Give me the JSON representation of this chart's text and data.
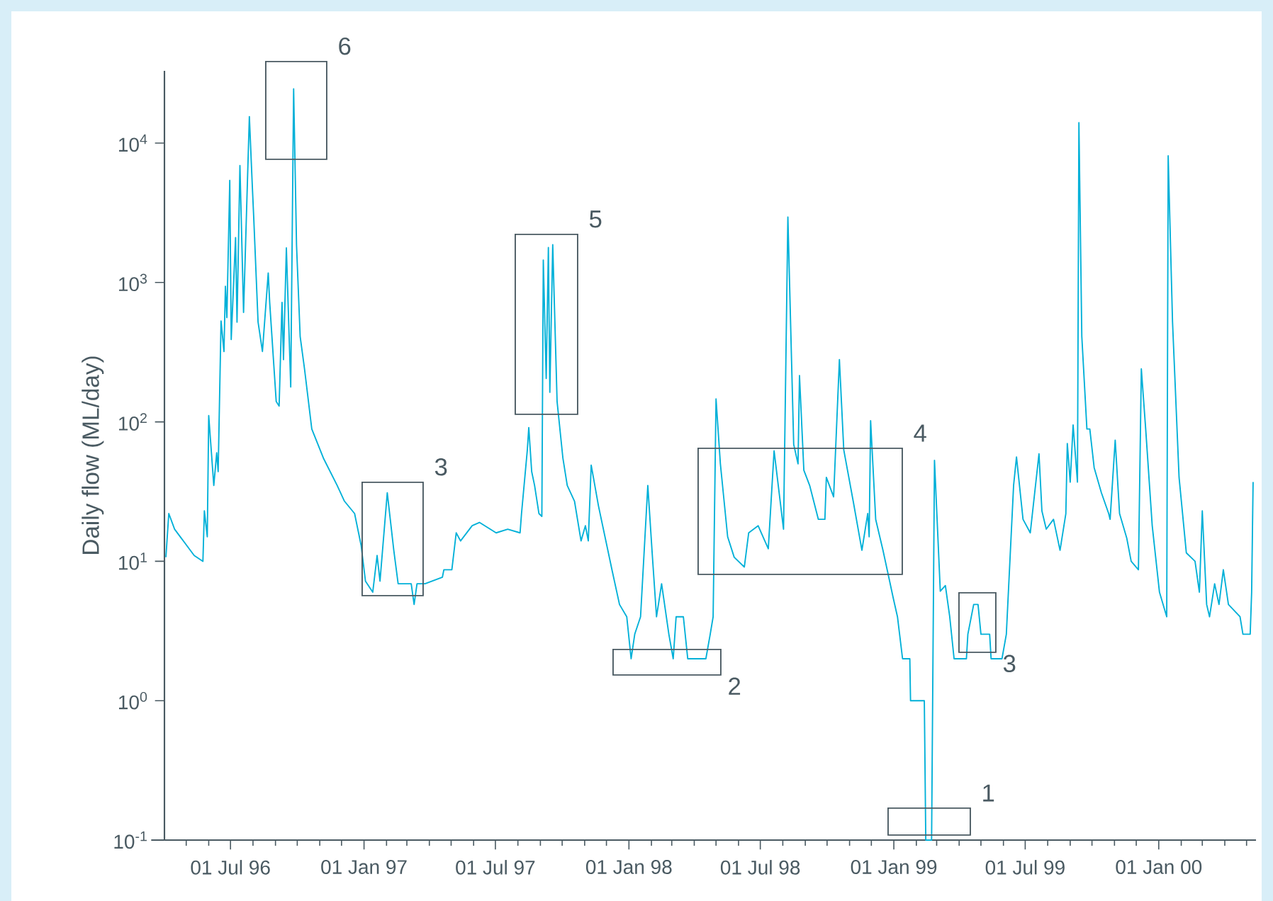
{
  "chart_data": {
    "type": "line",
    "ylabel": "Daily flow (ML/day)",
    "color": "#00b0d8",
    "log": true,
    "xlim": [
      "1996-04-01",
      "2000-05-14"
    ],
    "ylim": [
      0.1,
      33000
    ],
    "yticks": [
      {
        "value": 0.1,
        "label": "10$^{-1}$"
      },
      {
        "value": 1,
        "label": "10$^{0}$"
      },
      {
        "value": 10,
        "label": "10$^{1}$"
      },
      {
        "value": 100,
        "label": "10$^{2}$"
      },
      {
        "value": 1000,
        "label": "10$^{3}$"
      },
      {
        "value": 10000,
        "label": "10$^{4}$"
      }
    ],
    "xticks": [
      {
        "value": "1996-05-01",
        "label": null
      },
      {
        "value": "1996-06-01",
        "label": null
      },
      {
        "value": "1996-07-01",
        "label": "01 Jul 96"
      },
      {
        "value": "1996-08-01",
        "label": null
      },
      {
        "value": "1996-09-01",
        "label": null
      },
      {
        "value": "1996-10-01",
        "label": null
      },
      {
        "value": "1996-11-01",
        "label": null
      },
      {
        "value": "1996-12-01",
        "label": null
      },
      {
        "value": "1997-01-01",
        "label": "01 Jan 97"
      },
      {
        "value": "1997-02-01",
        "label": null
      },
      {
        "value": "1997-03-01",
        "label": null
      },
      {
        "value": "1997-04-01",
        "label": null
      },
      {
        "value": "1997-05-01",
        "label": null
      },
      {
        "value": "1997-06-01",
        "label": null
      },
      {
        "value": "1997-07-01",
        "label": "01 Jul 97"
      },
      {
        "value": "1997-08-01",
        "label": null
      },
      {
        "value": "1997-09-01",
        "label": null
      },
      {
        "value": "1997-10-01",
        "label": null
      },
      {
        "value": "1997-11-01",
        "label": null
      },
      {
        "value": "1997-12-01",
        "label": null
      },
      {
        "value": "1998-01-01",
        "label": "01 Jan 98"
      },
      {
        "value": "1998-02-01",
        "label": null
      },
      {
        "value": "1998-03-01",
        "label": null
      },
      {
        "value": "1998-04-01",
        "label": null
      },
      {
        "value": "1998-05-01",
        "label": null
      },
      {
        "value": "1998-06-01",
        "label": null
      },
      {
        "value": "1998-07-01",
        "label": "01 Jul 98"
      },
      {
        "value": "1998-08-01",
        "label": null
      },
      {
        "value": "1998-09-01",
        "label": null
      },
      {
        "value": "1998-10-01",
        "label": null
      },
      {
        "value": "1998-11-01",
        "label": null
      },
      {
        "value": "1998-12-01",
        "label": null
      },
      {
        "value": "1999-01-01",
        "label": "01 Jan 99"
      },
      {
        "value": "1999-02-01",
        "label": null
      },
      {
        "value": "1999-03-01",
        "label": null
      },
      {
        "value": "1999-04-01",
        "label": null
      },
      {
        "value": "1999-05-01",
        "label": null
      },
      {
        "value": "1999-06-01",
        "label": null
      },
      {
        "value": "1999-07-01",
        "label": "01 Jul 99"
      },
      {
        "value": "1999-08-01",
        "label": null
      },
      {
        "value": "1999-09-01",
        "label": null
      },
      {
        "value": "1999-10-01",
        "label": null
      },
      {
        "value": "1999-11-01",
        "label": null
      },
      {
        "value": "1999-12-01",
        "label": null
      },
      {
        "value": "2000-01-01",
        "label": "01 Jan 00"
      },
      {
        "value": "2000-02-01",
        "label": null
      },
      {
        "value": "2000-03-01",
        "label": null
      },
      {
        "value": "2000-04-01",
        "label": null
      },
      {
        "value": "2000-05-01",
        "label": null
      }
    ],
    "x": [
      "1996-04-03",
      "1996-04-07",
      "1996-04-15",
      "1996-05-12",
      "1996-05-24",
      "1996-05-26",
      "1996-05-30",
      "1996-06-01",
      "1996-06-08",
      "1996-06-12",
      "1996-06-14",
      "1996-06-18",
      "1996-06-22",
      "1996-06-24",
      "1996-06-26",
      "1996-06-30",
      "1996-07-02",
      "1996-07-08",
      "1996-07-10",
      "1996-07-14",
      "1996-07-19",
      "1996-07-27",
      "1996-07-31",
      "1996-08-02",
      "1996-08-08",
      "1996-08-14",
      "1996-08-22",
      "1996-08-24",
      "1996-09-02",
      "1996-09-06",
      "1996-09-10",
      "1996-09-12",
      "1996-09-16",
      "1996-09-22",
      "1996-09-26",
      "1996-09-30",
      "1996-10-05",
      "1996-10-11",
      "1996-10-21",
      "1996-11-06",
      "1996-11-25",
      "1996-12-05",
      "1996-12-19",
      "1996-12-28",
      "1997-01-03",
      "1997-01-13",
      "1997-01-19",
      "1997-01-23",
      "1997-02-02",
      "1997-02-11",
      "1997-02-17",
      "1997-03-07",
      "1997-03-11",
      "1997-03-15",
      "1997-03-26",
      "1997-04-19",
      "1997-04-21",
      "1997-05-02",
      "1997-05-08",
      "1997-05-14",
      "1997-05-30",
      "1997-06-09",
      "1997-07-02",
      "1997-07-18",
      "1997-08-04",
      "1997-08-06",
      "1997-08-14",
      "1997-08-16",
      "1997-08-20",
      "1997-08-24",
      "1997-08-30",
      "1997-09-03",
      "1997-09-05",
      "1997-09-09",
      "1997-09-12",
      "1997-09-14",
      "1997-09-18",
      "1997-09-24",
      "1997-10-02",
      "1997-10-08",
      "1997-10-18",
      "1997-10-27",
      "1997-11-02",
      "1997-11-06",
      "1997-11-10",
      "1997-11-20",
      "1997-11-29",
      "1997-12-09",
      "1997-12-19",
      "1997-12-29",
      "1998-01-04",
      "1998-01-09",
      "1998-01-17",
      "1998-01-27",
      "1998-02-02",
      "1998-02-08",
      "1998-02-15",
      "1998-02-25",
      "1998-03-03",
      "1998-03-07",
      "1998-03-17",
      "1998-03-23",
      "1998-04-17",
      "1998-04-23",
      "1998-04-27",
      "1998-05-01",
      "1998-05-07",
      "1998-05-17",
      "1998-05-26",
      "1998-06-09",
      "1998-06-15",
      "1998-06-28",
      "1998-07-12",
      "1998-07-20",
      "1998-08-02",
      "1998-08-08",
      "1998-08-16",
      "1998-08-22",
      "1998-08-24",
      "1998-08-30",
      "1998-09-07",
      "1998-09-19",
      "1998-09-28",
      "1998-09-30",
      "1998-10-10",
      "1998-10-18",
      "1998-10-24",
      "1998-11-06",
      "1998-11-18",
      "1998-11-26",
      "1998-11-28",
      "1998-11-30",
      "1998-12-07",
      "1998-12-17",
      "1998-12-25",
      "1998-12-31",
      "1999-01-06",
      "1999-01-13",
      "1999-01-23",
      "1999-01-24",
      "1999-02-12",
      "1999-02-14",
      "1999-02-22",
      "1999-02-26",
      "1999-03-06",
      "1999-03-13",
      "1999-03-19",
      "1999-03-25",
      "1999-04-11",
      "1999-04-13",
      "1999-04-21",
      "1999-04-27",
      "1999-05-01",
      "1999-05-13",
      "1999-05-15",
      "1999-05-30",
      "1999-06-05",
      "1999-06-15",
      "1999-06-19",
      "1999-06-28",
      "1999-07-08",
      "1999-07-20",
      "1999-07-24",
      "1999-07-30",
      "1999-08-09",
      "1999-08-18",
      "1999-08-26",
      "1999-08-28",
      "1999-09-01",
      "1999-09-05",
      "1999-09-11",
      "1999-09-13",
      "1999-09-17",
      "1999-09-24",
      "1999-09-28",
      "1999-10-04",
      "1999-10-14",
      "1999-10-24",
      "1999-10-26",
      "1999-11-02",
      "1999-11-08",
      "1999-11-18",
      "1999-11-24",
      "1999-12-04",
      "1999-12-08",
      "1999-12-14",
      "1999-12-23",
      "2000-01-02",
      "2000-01-12",
      "2000-01-14",
      "2000-01-20",
      "2000-01-29",
      "2000-02-08",
      "2000-02-20",
      "2000-02-26",
      "2000-03-01",
      "2000-03-07",
      "2000-03-11",
      "2000-03-18",
      "2000-03-24",
      "2000-03-30",
      "2000-04-06",
      "2000-04-22",
      "2000-04-26",
      "2000-05-06",
      "2000-05-08",
      "2000-05-10"
    ],
    "values": [
      10.7,
      22,
      17,
      11,
      10,
      23,
      15,
      111,
      35,
      60,
      44,
      530,
      320,
      940,
      560,
      5400,
      390,
      2100,
      520,
      6900,
      610,
      15500,
      5000,
      2950,
      520,
      320,
      1170,
      720,
      140,
      130,
      720,
      280,
      1770,
      178,
      24500,
      1850,
      410,
      240,
      89,
      55,
      35,
      27,
      22,
      13,
      7.2,
      6,
      11,
      7.2,
      31,
      12,
      6.9,
      6.9,
      4.9,
      6.9,
      6.9,
      7.7,
      8.7,
      8.7,
      16,
      14,
      18,
      19,
      16,
      17,
      16,
      22,
      63,
      91,
      44,
      35,
      22,
      21,
      1450,
      205,
      1780,
      163,
      1870,
      140,
      55,
      35,
      27,
      14,
      18,
      14,
      49,
      25,
      15,
      8.5,
      4.9,
      4,
      2,
      3,
      4,
      35,
      11.5,
      4,
      6.9,
      3,
      2,
      4,
      4,
      2,
      2,
      3,
      4,
      146,
      50,
      15,
      10.7,
      9.1,
      16,
      18,
      12.3,
      62,
      17,
      2950,
      69,
      50,
      215,
      45,
      35,
      20,
      20,
      40,
      29,
      280,
      63,
      27,
      12,
      22,
      15,
      102,
      20,
      12,
      7.7,
      5.5,
      4,
      2,
      2,
      1,
      1,
      0.1,
      0.1,
      53,
      6.1,
      6.7,
      4,
      2,
      2,
      3,
      4.9,
      4.9,
      3,
      3,
      2,
      2,
      3,
      35,
      56,
      20,
      16,
      59,
      23,
      17,
      20,
      12,
      22,
      70,
      37,
      95,
      37,
      14000,
      410,
      89,
      89,
      47,
      31,
      22,
      20,
      74,
      22,
      14.6,
      10,
      8.7,
      240,
      89,
      18,
      6,
      4,
      8100,
      520,
      40,
      11.5,
      10,
      6,
      23,
      4.9,
      4,
      6.9,
      4.9,
      8.7,
      4.9,
      4,
      3,
      3,
      6,
      37
    ],
    "annotations": [
      "6",
      "3",
      "5",
      "4",
      "2",
      "3",
      "1"
    ]
  }
}
